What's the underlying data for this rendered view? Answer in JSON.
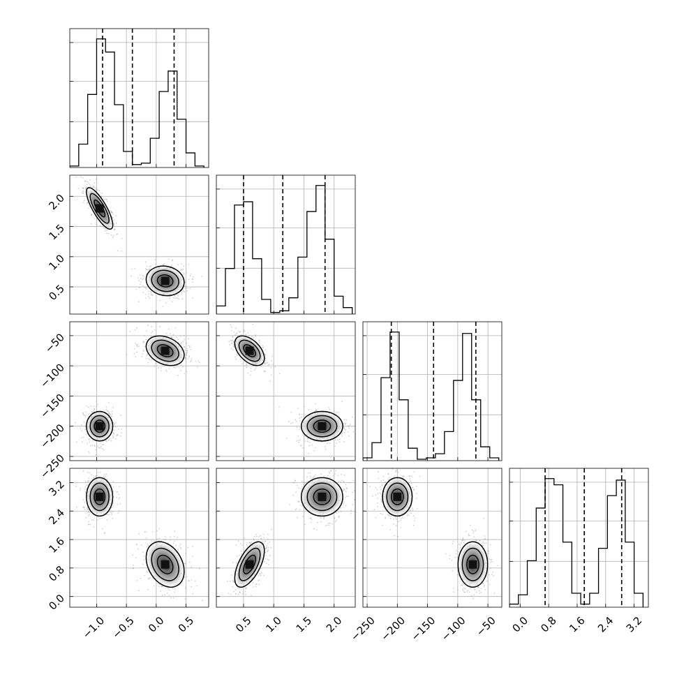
{
  "chart_data": {
    "type": "corner",
    "parameters": [
      {
        "range": [
          -1.45,
          0.88
        ],
        "ticks": [
          -1.0,
          -0.5,
          0.0,
          0.5
        ],
        "tick_labels": [
          "−1.0",
          "−0.5",
          "0.0",
          "0.5"
        ],
        "quantiles": [
          -0.9,
          -0.4,
          0.3
        ],
        "histogram": {
          "edges": [
            -1.45,
            -1.3,
            -1.15,
            -1.0,
            -0.85,
            -0.7,
            -0.55,
            -0.4,
            -0.25,
            -0.1,
            0.05,
            0.2,
            0.35,
            0.5,
            0.65,
            0.8
          ],
          "counts": [
            0.01,
            0.16,
            0.5,
            0.88,
            0.79,
            0.43,
            0.11,
            0.02,
            0.03,
            0.2,
            0.52,
            0.66,
            0.33,
            0.1,
            0.01
          ]
        }
      },
      {
        "range": [
          0.05,
          2.35
        ],
        "ticks": [
          0.5,
          1.0,
          1.5,
          2.0
        ],
        "tick_labels": [
          "0.5",
          "1.0",
          "1.5",
          "2.0"
        ],
        "quantiles": [
          0.5,
          1.15,
          1.85
        ],
        "histogram": {
          "edges": [
            0.05,
            0.2,
            0.35,
            0.5,
            0.65,
            0.8,
            0.95,
            1.1,
            1.25,
            1.4,
            1.55,
            1.7,
            1.85,
            2.0,
            2.15,
            2.3
          ],
          "counts": [
            0.05,
            0.28,
            0.67,
            0.69,
            0.34,
            0.09,
            0.01,
            0.02,
            0.1,
            0.35,
            0.63,
            0.79,
            0.46,
            0.11,
            0.04
          ]
        }
      },
      {
        "range": [
          -257,
          -27
        ],
        "ticks": [
          -250,
          -200,
          -150,
          -100,
          -50
        ],
        "tick_labels": [
          "−250",
          "−200",
          "−150",
          "−100",
          "−50"
        ],
        "quantiles": [
          -210,
          -140,
          -70
        ],
        "histogram": {
          "edges": [
            -257,
            -242,
            -227,
            -212,
            -197,
            -182,
            -167,
            -152,
            -137,
            -122,
            -107,
            -92,
            -77,
            -62,
            -47,
            -32
          ],
          "counts": [
            0.02,
            0.13,
            0.6,
            0.93,
            0.44,
            0.09,
            0.01,
            0.02,
            0.05,
            0.21,
            0.58,
            0.92,
            0.44,
            0.1,
            0.02
          ]
        }
      },
      {
        "range": [
          -0.3,
          3.6
        ],
        "ticks": [
          0.0,
          0.8,
          1.6,
          2.4,
          3.2
        ],
        "tick_labels": [
          "0.0",
          "0.8",
          "1.6",
          "2.4",
          "3.2"
        ],
        "quantiles": [
          0.7,
          1.8,
          2.85
        ],
        "histogram": {
          "edges": [
            -0.3,
            -0.05,
            0.2,
            0.45,
            0.7,
            0.95,
            1.2,
            1.45,
            1.7,
            1.95,
            2.2,
            2.45,
            2.7,
            2.95,
            3.2,
            3.45
          ],
          "counts": [
            0.02,
            0.08,
            0.3,
            0.64,
            0.83,
            0.79,
            0.42,
            0.09,
            0.02,
            0.09,
            0.38,
            0.72,
            0.82,
            0.42,
            0.09
          ]
        }
      }
    ],
    "clusters": [
      {
        "center": [
          -0.95,
          1.8,
          -200,
          2.8
        ],
        "std": [
          0.09,
          0.14,
          10,
          0.22
        ]
      },
      {
        "center": [
          0.15,
          0.6,
          -75,
          0.9
        ],
        "std": [
          0.13,
          0.1,
          10,
          0.26
        ]
      }
    ],
    "correlations": {
      "0-1": [
        -0.8,
        -0.1
      ],
      "0-2": [
        0.0,
        -0.3
      ],
      "1-2": [
        0.0,
        -0.5
      ],
      "0-3": [
        0.0,
        -0.3
      ],
      "1-3": [
        0.0,
        0.6
      ],
      "2-3": [
        0.0,
        0.0
      ]
    },
    "grid": true
  }
}
